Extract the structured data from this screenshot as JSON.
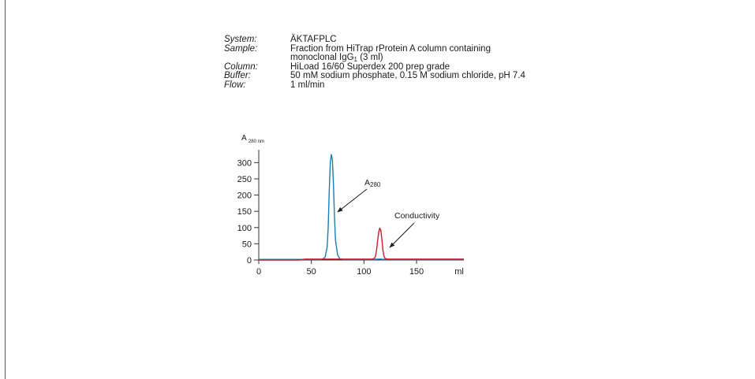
{
  "meta": [
    {
      "key": "System:",
      "lines": [
        {
          "text": "ÄKTAFPLC"
        }
      ]
    },
    {
      "key": "Sample:",
      "lines": [
        {
          "text": "Fraction from HiTrap rProtein A column containing"
        },
        {
          "text": "monoclonal IgG",
          "sub": "1",
          "suffix": " (3 ml)"
        }
      ]
    },
    {
      "key": "Column:",
      "lines": [
        {
          "text": "HiLoad 16/60 Superdex 200 prep grade"
        }
      ]
    },
    {
      "key": "Buffer:",
      "lines": [
        {
          "text": "50 mM sodium phosphate, 0.15 M sodium chloride, pH 7.4"
        }
      ]
    },
    {
      "key": "Flow:",
      "lines": [
        {
          "text": "1 ml/min"
        }
      ]
    }
  ],
  "chart_data": {
    "type": "line",
    "ylabel": "A",
    "ylabel_sub": "280 nm",
    "xunit": "ml",
    "xlim": [
      0,
      195
    ],
    "ylim": [
      0,
      330
    ],
    "xticks": [
      0,
      50,
      100,
      150
    ],
    "yticks": [
      0,
      50,
      100,
      150,
      200,
      250,
      300
    ],
    "grid": false,
    "series": [
      {
        "name": "A280",
        "color": "#1b7fb0",
        "x": [
          0,
          60,
          63,
          65,
          66,
          67,
          68,
          69,
          70,
          71,
          72,
          73,
          75,
          77,
          80,
          110,
          114,
          116,
          118,
          195
        ],
        "y": [
          2,
          2,
          8,
          40,
          100,
          210,
          300,
          325,
          310,
          230,
          130,
          60,
          15,
          4,
          2,
          2,
          3,
          3,
          2,
          2
        ]
      },
      {
        "name": "Conductivity",
        "color": "#c8202a",
        "x": [
          0,
          40,
          42,
          44,
          108,
          110,
          111,
          112,
          113,
          114,
          115,
          116,
          117,
          118,
          119,
          120,
          122,
          195
        ],
        "y": [
          0,
          0,
          2,
          3,
          3,
          5,
          12,
          30,
          60,
          85,
          98,
          92,
          65,
          32,
          12,
          5,
          3,
          3
        ]
      }
    ],
    "annotations": [
      {
        "text": "A",
        "sub": "280",
        "x": 76,
        "y": 150
      },
      {
        "text": "Conductivity",
        "x": 126,
        "y": 40
      }
    ]
  }
}
